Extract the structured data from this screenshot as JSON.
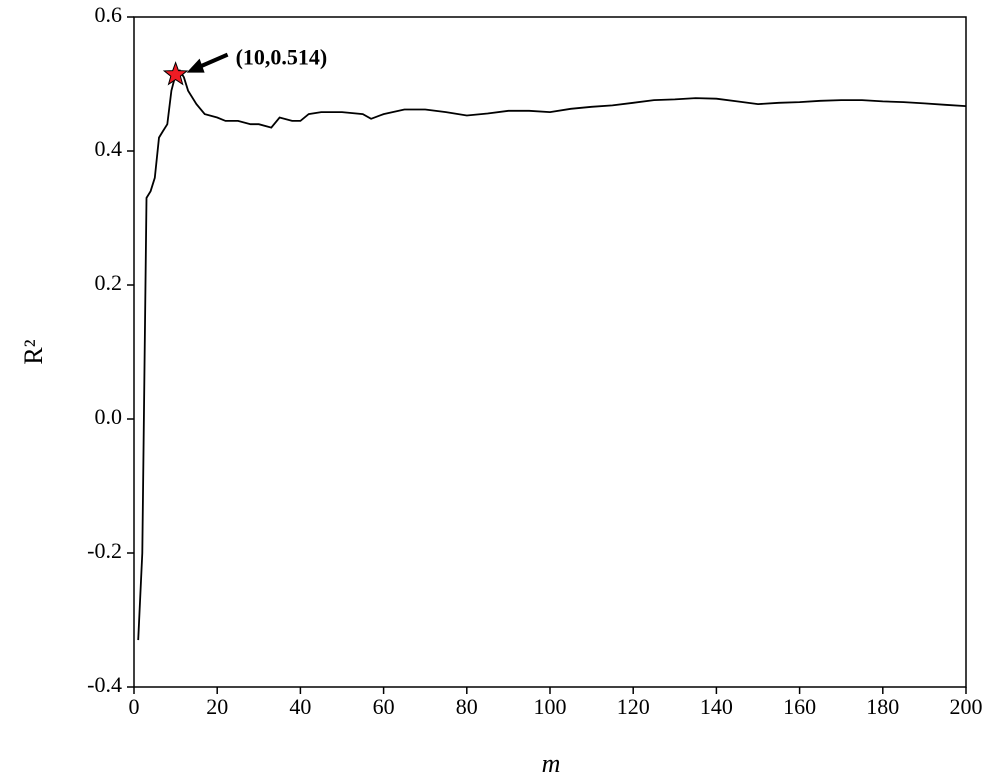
{
  "chart_data": {
    "type": "line",
    "xlabel": "m",
    "ylabel": "R²",
    "x": [
      1,
      2,
      3,
      4,
      5,
      6,
      7,
      8,
      9,
      10,
      11,
      12,
      13,
      15,
      17,
      20,
      22,
      25,
      28,
      30,
      33,
      35,
      38,
      40,
      42,
      45,
      50,
      55,
      57,
      60,
      65,
      70,
      75,
      80,
      85,
      90,
      95,
      100,
      105,
      110,
      115,
      120,
      125,
      130,
      135,
      140,
      145,
      150,
      155,
      160,
      165,
      170,
      175,
      180,
      185,
      190,
      195,
      200
    ],
    "values": [
      -0.33,
      -0.2,
      0.33,
      0.34,
      0.36,
      0.42,
      0.43,
      0.44,
      0.49,
      0.514,
      0.52,
      0.51,
      0.49,
      0.47,
      0.455,
      0.45,
      0.445,
      0.445,
      0.44,
      0.44,
      0.435,
      0.45,
      0.445,
      0.445,
      0.455,
      0.458,
      0.458,
      0.455,
      0.448,
      0.455,
      0.462,
      0.462,
      0.458,
      0.453,
      0.456,
      0.46,
      0.46,
      0.458,
      0.463,
      0.466,
      0.468,
      0.472,
      0.476,
      0.477,
      0.479,
      0.478,
      0.474,
      0.47,
      0.472,
      0.473,
      0.475,
      0.476,
      0.476,
      0.474,
      0.473,
      0.471,
      0.469,
      0.467
    ],
    "color": "#000000",
    "xlim": [
      0,
      200
    ],
    "xticks": [
      0,
      20,
      40,
      60,
      80,
      100,
      120,
      140,
      160,
      180,
      200
    ],
    "ylim": [
      -0.4,
      0.6
    ],
    "yticks": [
      -0.4,
      -0.2,
      {
        "value": 0,
        "label": "0.0"
      },
      0.2,
      0.4,
      0.6
    ],
    "annotation": {
      "text": "(10,0.514)",
      "x": 10,
      "y": 0.514,
      "color": "#ee1c24"
    }
  }
}
